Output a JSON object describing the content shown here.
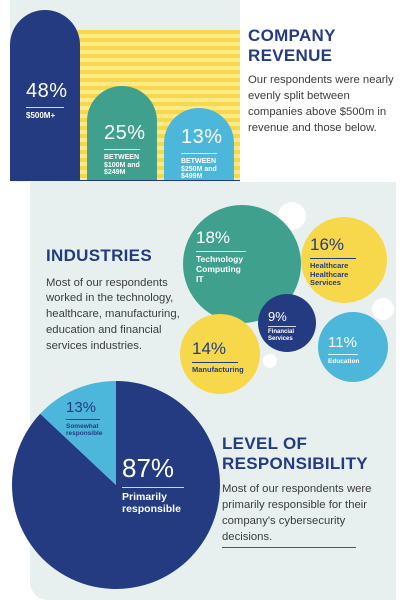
{
  "revenue": {
    "title_line1": "COMPANY",
    "title_line2": "REVENUE",
    "description": "Our respondents were nearly evenly split between companies above $500m in revenue and those below.",
    "bars": [
      {
        "pct": "48%",
        "label": "$500M+"
      },
      {
        "pct": "25%",
        "label_line1": "BETWEEN",
        "label_line2": "$100M and",
        "label_line3": "$249M"
      },
      {
        "pct": "13%",
        "label_line1": "BETWEEN",
        "label_line2": "$250M and",
        "label_line3": "$499M"
      }
    ],
    "bar_values": [
      48,
      25,
      13
    ]
  },
  "industries": {
    "title": "INDUSTRIES",
    "description": "Most of our respondents worked in the technology, healthcare, manufacturing, education and financial services industries.",
    "items": [
      {
        "pct": "18%",
        "label_line1": "Technology",
        "label_line2": "Computing",
        "label_line3": "IT",
        "value": 18
      },
      {
        "pct": "16%",
        "label_line1": "Healthcare",
        "label_line2": "Healthcare",
        "label_line3": "Services",
        "value": 16
      },
      {
        "pct": "9%",
        "label_line1": "Financial",
        "label_line2": "Services",
        "value": 9
      },
      {
        "pct": "14%",
        "label": "Manufacturing",
        "value": 14
      },
      {
        "pct": "11%",
        "label": "Education",
        "value": 11
      }
    ]
  },
  "responsibility": {
    "title_line1": "LEVEL OF",
    "title_line2": "RESPONSIBILITY",
    "description": "Most of our respondents were primarily responsible for their company's cybersecurity decisions.",
    "slices": [
      {
        "pct": "87%",
        "label_line1": "Primarily",
        "label_line2": "responsible",
        "value": 87
      },
      {
        "pct": "13%",
        "label_line1": "Somewhat",
        "label_line2": "responsible",
        "value": 13
      }
    ]
  },
  "colors": {
    "navy": "#243b82",
    "teal": "#3fa08e",
    "sky": "#4db6db",
    "yellow": "#f6d84a",
    "mint_bg": "#e7f0ee"
  }
}
